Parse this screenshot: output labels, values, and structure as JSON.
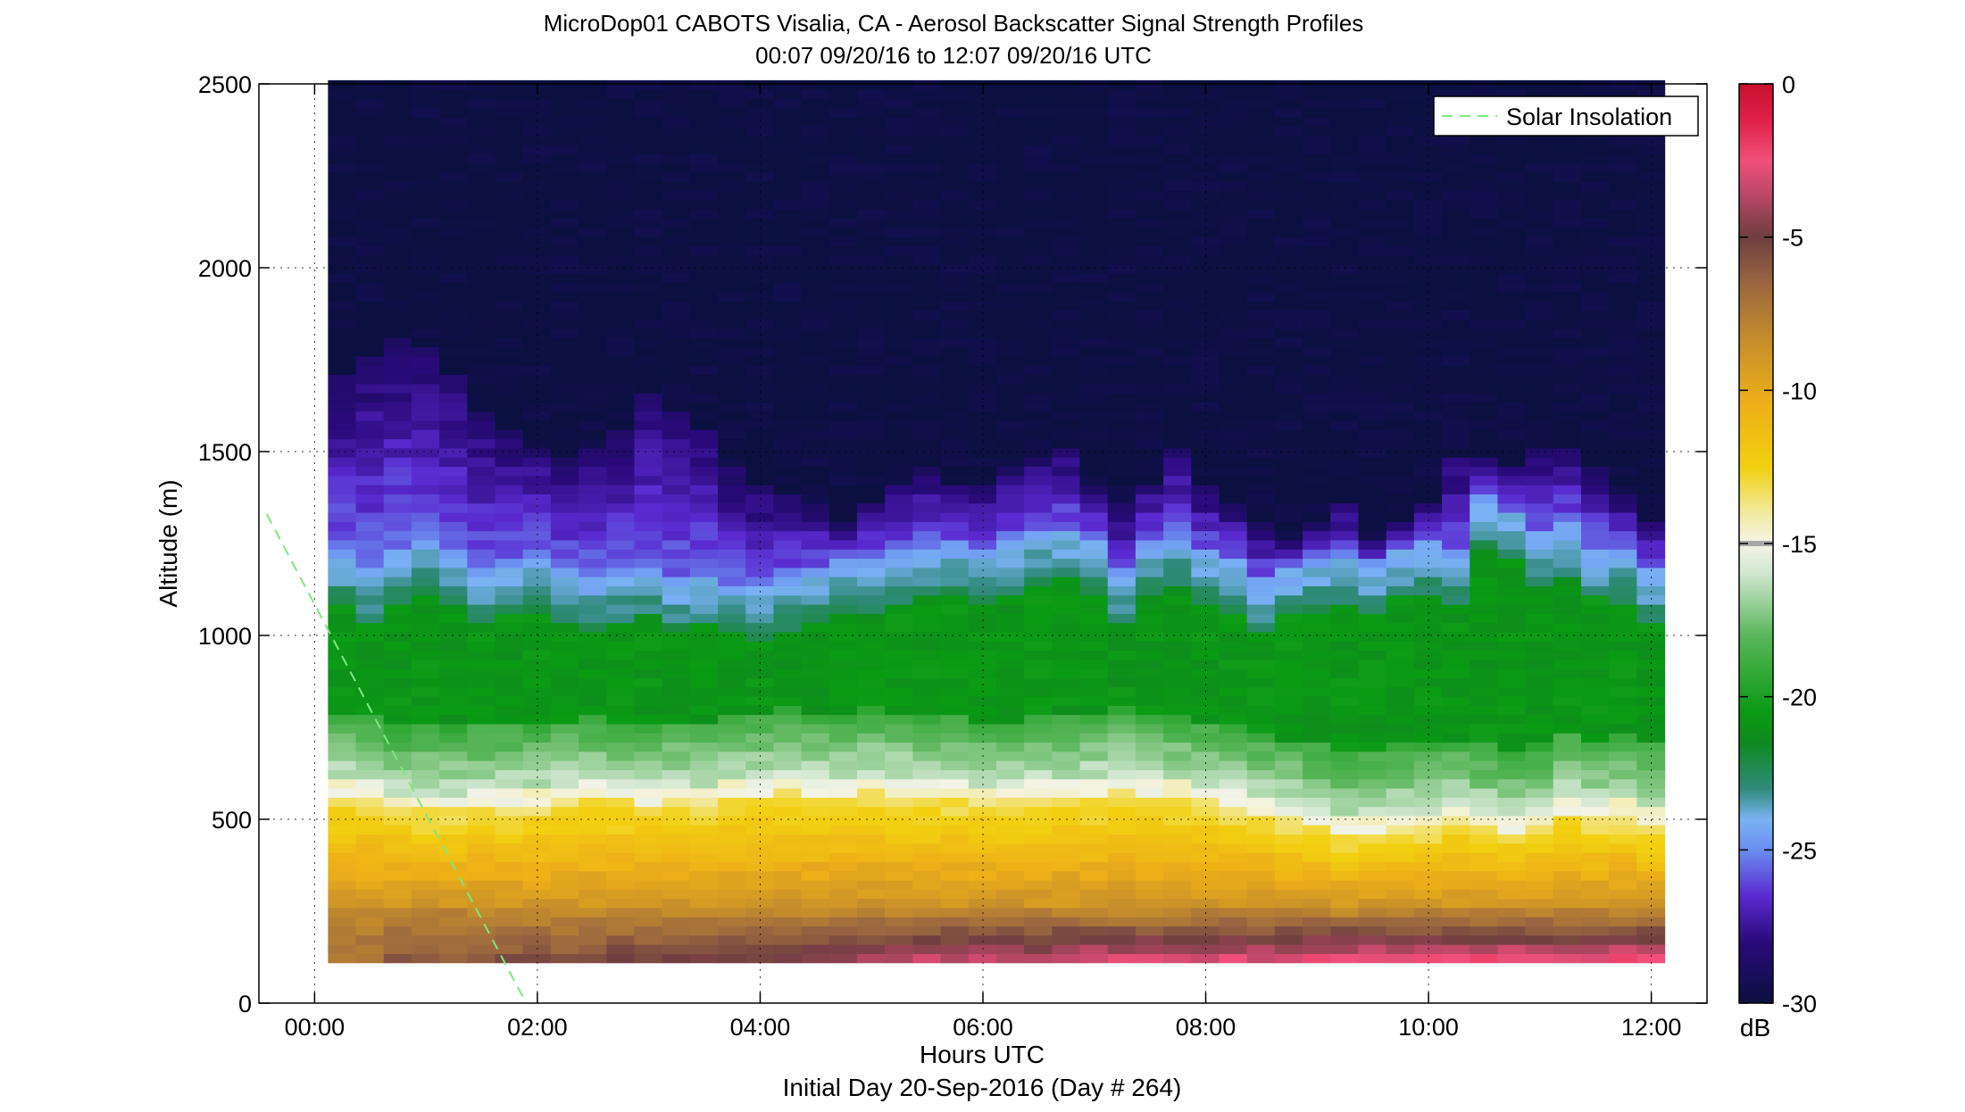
{
  "chart_data": {
    "type": "heatmap",
    "title": "MicroDop01 CABOTS Visalia, CA - Aerosol Backscatter Signal Strength Profiles",
    "subtitle": "00:07 09/20/16 to 12:07 09/20/16  UTC",
    "xlabel": "Hours UTC",
    "xlabel2": "Initial Day 20-Sep-2016 (Day # 264)",
    "ylabel": "Altitude (m)",
    "xlim": [
      -0.5,
      12.5
    ],
    "ylim": [
      0,
      2500
    ],
    "x_ticks": [
      0,
      2,
      4,
      6,
      8,
      10,
      12
    ],
    "x_tick_labels": [
      "00:00",
      "02:00",
      "04:00",
      "06:00",
      "08:00",
      "10:00",
      "12:00"
    ],
    "y_ticks": [
      0,
      500,
      1000,
      1500,
      2000,
      2500
    ],
    "y_tick_labels": [
      "0",
      "500",
      "1000",
      "1500",
      "2000",
      "2500"
    ],
    "grid": "dotted",
    "colorbar": {
      "label": "dB",
      "range": [
        -30,
        0
      ],
      "ticks": [
        0,
        -5,
        -10,
        -15,
        -20,
        -25,
        -30
      ],
      "tick_labels": [
        "0",
        "-5",
        "-10",
        "-15",
        "-20",
        "-25",
        "-30"
      ],
      "colors": [
        {
          "v": -30,
          "c": "#0b1040"
        },
        {
          "v": -28,
          "c": "#2a0a7a"
        },
        {
          "v": -26.5,
          "c": "#5a2ad0"
        },
        {
          "v": -25,
          "c": "#6a8ef0"
        },
        {
          "v": -24,
          "c": "#7ab2f4"
        },
        {
          "v": -23,
          "c": "#2f8a7a"
        },
        {
          "v": -21.5,
          "c": "#0f8a1e"
        },
        {
          "v": -20.5,
          "c": "#0a9a14"
        },
        {
          "v": -18,
          "c": "#5ab65a"
        },
        {
          "v": -16,
          "c": "#cfe6cf"
        },
        {
          "v": -15,
          "c": "#f4f4e8"
        },
        {
          "v": -14,
          "c": "#f2eaa0"
        },
        {
          "v": -12.5,
          "c": "#f2d010"
        },
        {
          "v": -10.5,
          "c": "#eeb018"
        },
        {
          "v": -8.5,
          "c": "#c8902a"
        },
        {
          "v": -6.5,
          "c": "#9a6640"
        },
        {
          "v": -5,
          "c": "#6e3e40"
        },
        {
          "v": -3.5,
          "c": "#c04868"
        },
        {
          "v": -2.5,
          "c": "#f0507a"
        },
        {
          "v": -1.2,
          "c": "#e02048"
        },
        {
          "v": 0,
          "c": "#c81030"
        }
      ],
      "colorbar_gray_band": -15
    },
    "data_x_start": 0.12,
    "data_x_end": 12.12,
    "data_y_start": 110,
    "data_y_end": 2500,
    "time_bins": 48,
    "altitude_bin_m": 25,
    "series": [
      {
        "name": "Solar Insolation",
        "style": "dashed",
        "color": "#7ee87e",
        "x": [
          -0.43,
          1.9
        ],
        "y": [
          1330,
          0
        ]
      }
    ],
    "legend": {
      "position": "top-right",
      "entries": [
        "Solar Insolation"
      ]
    },
    "profiles": {
      "aerosol_top_m": [
        1700,
        1750,
        1800,
        1780,
        1700,
        1600,
        1550,
        1520,
        1480,
        1500,
        1550,
        1650,
        1600,
        1550,
        1450,
        1400,
        1380,
        1350,
        1300,
        1350,
        1400,
        1450,
        1400,
        1420,
        1450,
        1480,
        1500,
        1400,
        1350,
        1420,
        1500,
        1400,
        1350,
        1300,
        1250,
        1300,
        1350,
        1250,
        1300,
        1350,
        1480,
        1480,
        1460,
        1500,
        1520,
        1450,
        1380,
        1320
      ],
      "green_top_m": [
        1150,
        1100,
        1150,
        1180,
        1150,
        1100,
        1120,
        1130,
        1100,
        1080,
        1100,
        1110,
        1080,
        1090,
        1060,
        1050,
        1080,
        1100,
        1120,
        1130,
        1150,
        1160,
        1170,
        1150,
        1180,
        1200,
        1210,
        1180,
        1100,
        1180,
        1190,
        1150,
        1130,
        1070,
        1110,
        1130,
        1140,
        1120,
        1160,
        1180,
        1150,
        1300,
        1260,
        1200,
        1220,
        1160,
        1150,
        1100
      ],
      "boundary_layer_m": [
        570,
        560,
        530,
        530,
        530,
        540,
        540,
        540,
        550,
        560,
        550,
        540,
        550,
        550,
        560,
        570,
        580,
        570,
        560,
        580,
        570,
        560,
        560,
        550,
        550,
        560,
        560,
        570,
        580,
        570,
        560,
        550,
        540,
        520,
        500,
        480,
        460,
        470,
        480,
        480,
        500,
        480,
        470,
        480,
        520,
        500,
        510,
        490
      ],
      "surface_strength_db": [
        -7,
        -7,
        -6,
        -6,
        -6,
        -6,
        -5.5,
        -5.5,
        -5.5,
        -5,
        -5,
        -5,
        -5,
        -5,
        -4.5,
        -4.5,
        -4,
        -4,
        -4,
        -3.5,
        -3,
        -3,
        -3,
        -3,
        -3,
        -3,
        -2.5,
        -2.5,
        -2.5,
        -2.5,
        -2.5,
        -2.5,
        -2.5,
        -2.5,
        -2.5,
        -2,
        -2,
        -2,
        -2,
        -2,
        -2.5,
        -2,
        -2,
        -2,
        -2.5,
        -2,
        -2,
        -2
      ]
    }
  }
}
